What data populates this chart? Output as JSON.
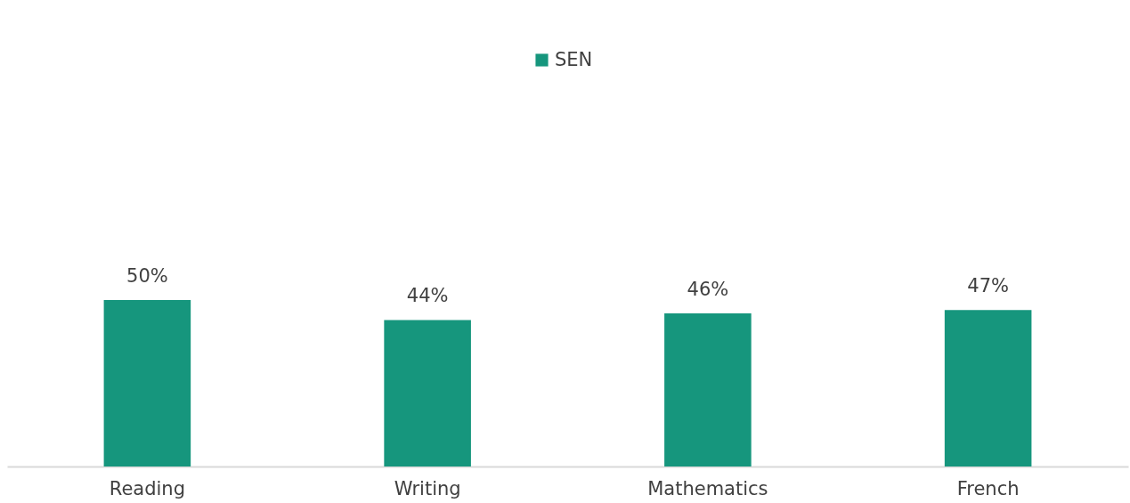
{
  "chart_data": {
    "type": "bar",
    "categories": [
      "Reading",
      "Writing",
      "Mathematics",
      "French"
    ],
    "series": [
      {
        "name": "SEN",
        "color": "#16967d",
        "values": [
          50,
          44,
          46,
          47
        ],
        "value_labels": [
          "50%",
          "44%",
          "46%",
          "47%"
        ]
      }
    ],
    "legend": "top",
    "grid": false
  }
}
